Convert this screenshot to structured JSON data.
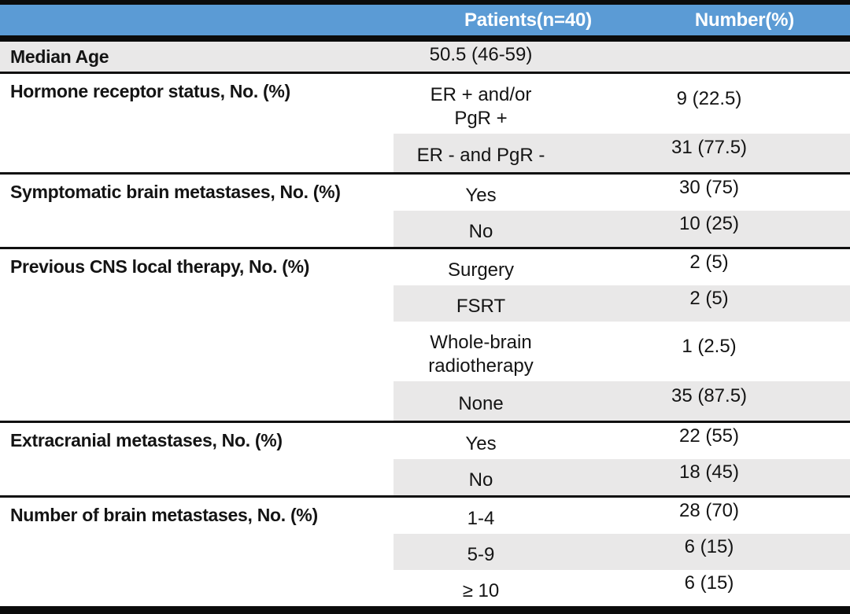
{
  "colors": {
    "header_blue": "#5B9BD5",
    "row_shade_gray": "#E9E8E8",
    "rule_black": "#0b0b0b",
    "header_text": "#ffffff"
  },
  "header": {
    "patients": "Patients(n=40)",
    "number": "Number(%)"
  },
  "median": {
    "label": "Median Age",
    "category": "50.5 (46-59)",
    "value": ""
  },
  "groups": [
    {
      "label": "Hormone receptor status, No. (%)",
      "items": [
        {
          "category": "ER + and/or\nPgR +",
          "value": "9 (22.5)"
        },
        {
          "category": "ER - and PgR -",
          "value": "31 (77.5)"
        }
      ]
    },
    {
      "label": "Symptomatic brain metastases, No. (%)",
      "items": [
        {
          "category": "Yes",
          "value": "30 (75)"
        },
        {
          "category": "No",
          "value": "10 (25)"
        }
      ]
    },
    {
      "label": "Previous CNS local therapy, No. (%)",
      "items": [
        {
          "category": "Surgery",
          "value": "2 (5)"
        },
        {
          "category": "FSRT",
          "value": "2 (5)"
        },
        {
          "category": "Whole-brain\nradiotherapy",
          "value": "1 (2.5)"
        },
        {
          "category": "None",
          "value": "35 (87.5)"
        }
      ]
    },
    {
      "label": "Extracranial metastases, No. (%)",
      "items": [
        {
          "category": "Yes",
          "value": "22 (55)"
        },
        {
          "category": "No",
          "value": "18 (45)"
        }
      ]
    },
    {
      "label": "Number of brain metastases, No. (%)",
      "items": [
        {
          "category": "1-4",
          "value": "28 (70)"
        },
        {
          "category": "5-9",
          "value": "6 (15)"
        },
        {
          "category": "≥ 10",
          "value": "6 (15)"
        }
      ]
    }
  ]
}
